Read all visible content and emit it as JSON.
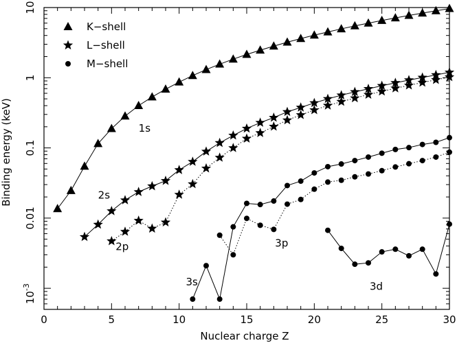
{
  "chart_data": {
    "type": "scatter",
    "xlabel": "Nuclear charge Z",
    "ylabel": "Binding energy (keV)",
    "yscale": "log",
    "xlim": [
      0,
      30
    ],
    "ylim": [
      0.0005,
      10
    ],
    "grid": false,
    "legend_position": "top-left",
    "x_ticks": [
      0,
      5,
      10,
      15,
      20,
      25,
      30
    ],
    "y_ticks": [
      {
        "value": 10,
        "label": "10"
      },
      {
        "value": 1,
        "label": "1"
      },
      {
        "value": 0.1,
        "label": "0.1"
      },
      {
        "value": 0.01,
        "label": "0.01"
      },
      {
        "value": 0.001,
        "label": "10",
        "exponent": "-3"
      }
    ],
    "legend": [
      {
        "label": "K−shell",
        "marker": "triangle"
      },
      {
        "label": "L−shell",
        "marker": "star"
      },
      {
        "label": "M−shell",
        "marker": "circle"
      }
    ],
    "annotations": [
      {
        "text": "1s",
        "x": 7,
        "y": 0.17
      },
      {
        "text": "2s",
        "x": 4,
        "y": 0.019
      },
      {
        "text": "2p",
        "x": 5.3,
        "y": 0.0035
      },
      {
        "text": "3s",
        "x": 10.5,
        "y": 0.0011
      },
      {
        "text": "3p",
        "x": 17.1,
        "y": 0.0039
      },
      {
        "text": "3d",
        "x": 24.1,
        "y": 0.00095
      }
    ],
    "series": [
      {
        "name": "1s",
        "shell": "K−shell",
        "marker": "triangle",
        "line": "solid",
        "x": [
          1,
          2,
          3,
          4,
          5,
          6,
          7,
          8,
          9,
          10,
          11,
          12,
          13,
          14,
          15,
          16,
          17,
          18,
          19,
          20,
          21,
          22,
          23,
          24,
          25,
          26,
          27,
          28,
          29,
          30
        ],
        "y": [
          0.0136,
          0.0246,
          0.0547,
          0.115,
          0.188,
          0.284,
          0.4,
          0.532,
          0.686,
          0.867,
          1.072,
          1.305,
          1.56,
          1.84,
          2.145,
          2.47,
          2.82,
          3.21,
          3.61,
          4.04,
          4.49,
          4.97,
          5.47,
          5.99,
          6.54,
          7.11,
          7.71,
          8.33,
          8.98,
          9.66
        ]
      },
      {
        "name": "2s",
        "shell": "L−shell",
        "marker": "star",
        "line": "solid",
        "x": [
          3,
          4,
          5,
          6,
          7,
          8,
          9,
          10,
          11,
          12,
          13,
          14,
          15,
          16,
          17,
          18,
          19,
          20,
          21,
          22,
          23,
          24,
          25,
          26,
          27,
          28,
          29,
          30
        ],
        "y": [
          0.0054,
          0.0081,
          0.0126,
          0.018,
          0.0236,
          0.0285,
          0.034,
          0.0485,
          0.0636,
          0.0889,
          0.118,
          0.1505,
          0.189,
          0.229,
          0.27,
          0.326,
          0.377,
          0.437,
          0.5,
          0.563,
          0.628,
          0.695,
          0.769,
          0.846,
          0.926,
          1.008,
          1.096,
          1.194
        ]
      },
      {
        "name": "2p",
        "shell": "L−shell",
        "marker": "star",
        "line": "dotted",
        "x": [
          5,
          6,
          7,
          8,
          9,
          10,
          11,
          12,
          13,
          14,
          15,
          16,
          17,
          18,
          19,
          20,
          21,
          22,
          23,
          24,
          25,
          26,
          27,
          28,
          29,
          30
        ],
        "y": [
          0.0047,
          0.0064,
          0.0092,
          0.0071,
          0.0087,
          0.0216,
          0.0305,
          0.0511,
          0.0728,
          0.0998,
          0.136,
          0.1635,
          0.2016,
          0.2484,
          0.2946,
          0.3462,
          0.4016,
          0.4555,
          0.5121,
          0.574,
          0.6384,
          0.7069,
          0.7783,
          0.8545,
          0.9327,
          1.0216
        ]
      },
      {
        "name": "3s",
        "shell": "M−shell",
        "marker": "circle",
        "line": "solid",
        "x": [
          11,
          12,
          13,
          14,
          15,
          16,
          17,
          18,
          19,
          20,
          21,
          22,
          23,
          24,
          25,
          26,
          27,
          28,
          29,
          30
        ],
        "y": [
          0.0007,
          0.0021,
          0.0007,
          0.0075,
          0.0162,
          0.0156,
          0.0175,
          0.0291,
          0.0336,
          0.044,
          0.054,
          0.059,
          0.066,
          0.074,
          0.084,
          0.095,
          0.101,
          0.112,
          0.12,
          0.14
        ]
      },
      {
        "name": "3p",
        "shell": "M−shell",
        "marker": "circle",
        "line": "dotted",
        "x": [
          13,
          14,
          15,
          16,
          17,
          18,
          19,
          20,
          21,
          22,
          23,
          24,
          25,
          26,
          27,
          28,
          29,
          30
        ],
        "y": [
          0.0057,
          0.003,
          0.0099,
          0.0079,
          0.0069,
          0.0158,
          0.0184,
          0.0258,
          0.0326,
          0.0346,
          0.0387,
          0.0425,
          0.0474,
          0.0535,
          0.0595,
          0.066,
          0.074,
          0.087
        ]
      },
      {
        "name": "3d",
        "shell": "M−shell",
        "marker": "circle",
        "line": "solid",
        "x": [
          21,
          22,
          23,
          24,
          25,
          26,
          27,
          28,
          29,
          30
        ],
        "y": [
          0.0067,
          0.0037,
          0.0022,
          0.0023,
          0.0033,
          0.0036,
          0.0029,
          0.0036,
          0.0016,
          0.0082
        ]
      }
    ]
  }
}
